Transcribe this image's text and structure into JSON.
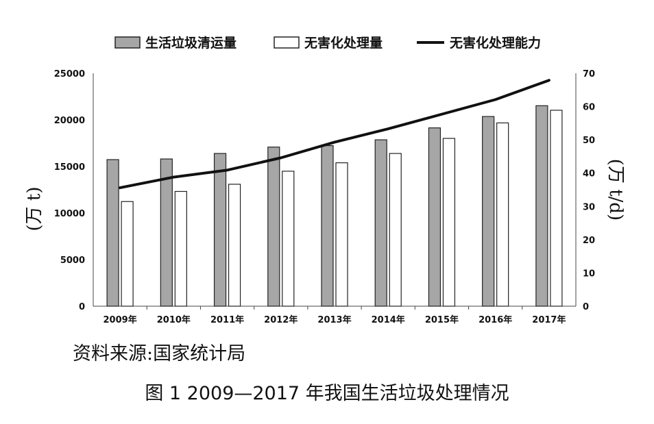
{
  "chart_data": {
    "type": "bar",
    "categories": [
      "2009年",
      "2010年",
      "2011年",
      "2012年",
      "2013年",
      "2014年",
      "2015年",
      "2016年",
      "2017年"
    ],
    "series": [
      {
        "name": "生活垃圾清运量",
        "kind": "bar",
        "axis": "left",
        "color": "#a6a6a6",
        "values": [
          15734,
          15805,
          16395,
          17081,
          17239,
          17860,
          19142,
          20362,
          21521
        ]
      },
      {
        "name": "无害化处理量",
        "kind": "bar",
        "axis": "left",
        "color": "#ffffff",
        "values": [
          11232,
          12318,
          13090,
          14490,
          15394,
          16394,
          18013,
          19674,
          21034
        ]
      },
      {
        "name": "无害化处理能力",
        "kind": "line",
        "axis": "right",
        "color": "#111111",
        "values": [
          35.6,
          38.8,
          40.9,
          44.6,
          49.3,
          53.3,
          57.7,
          62.1,
          67.9
        ]
      }
    ],
    "y_left": {
      "label": "(万 t)",
      "min": 0,
      "max": 25000,
      "ticks": [
        0,
        5000,
        10000,
        15000,
        20000,
        25000
      ]
    },
    "y_right": {
      "label": "(万 t/d)",
      "min": 0,
      "max": 70,
      "ticks": [
        0,
        10,
        20,
        30,
        40,
        50,
        60,
        70
      ]
    },
    "legend_position": "top",
    "grid": false
  },
  "source": "资料来源:国家统计局",
  "caption": "图 1   2009—2017 年我国生活垃圾处理情况"
}
